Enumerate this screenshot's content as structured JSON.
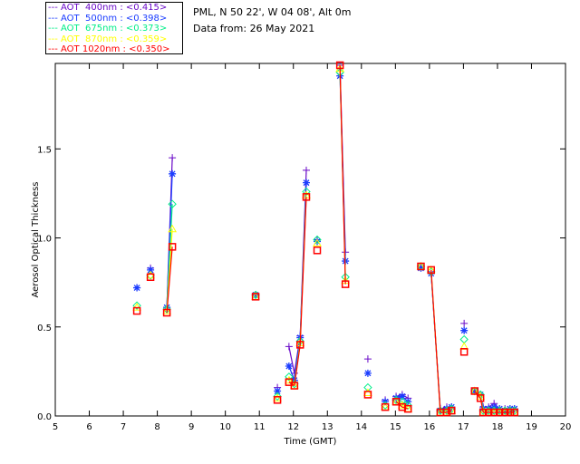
{
  "chart_data": {
    "type": "line",
    "title": "PML, N 50 22', W 04 08', Alt 0m",
    "subtitle": "Data from: 26 May 2021",
    "xlabel": "Time (GMT)",
    "ylabel": "Aerosol Optical Thickness",
    "xlim": [
      5,
      20
    ],
    "ylim": [
      0,
      1.98
    ],
    "xticks": [
      5,
      6,
      7,
      8,
      9,
      10,
      11,
      12,
      13,
      14,
      15,
      16,
      17,
      18,
      19,
      20
    ],
    "yticks": [
      "0.0",
      "0.5",
      "1.0",
      "1.5"
    ],
    "ytick_values": [
      0,
      0.5,
      1.0,
      1.5
    ],
    "legend_position": "top-left outside",
    "x": [
      7.4,
      7.8,
      8.28,
      8.44,
      10.89,
      11.53,
      11.87,
      12.03,
      12.2,
      12.38,
      12.7,
      13.37,
      13.53,
      14.19,
      14.7,
      15.02,
      15.2,
      15.37,
      15.75,
      16.05,
      16.32,
      16.51,
      16.65,
      17.02,
      17.33,
      17.5,
      17.58,
      17.74,
      17.9,
      18.06,
      18.22,
      18.37,
      18.5
    ],
    "series": [
      {
        "name": "AOT  400nm : <0.415>",
        "color": "#6a0ac8",
        "marker": "plus",
        "values": [
          0.72,
          0.83,
          0.61,
          1.45,
          0.68,
          0.16,
          0.39,
          0.24,
          0.45,
          1.38,
          0.99,
          1.97,
          0.92,
          0.32,
          0.09,
          0.11,
          0.12,
          0.1,
          0.84,
          0.8,
          0.04,
          0.05,
          0.05,
          0.52,
          0.14,
          0.12,
          0.05,
          0.05,
          0.07,
          0.04,
          0.04,
          0.04,
          0.04
        ]
      },
      {
        "name": "AOT  500nm : <0.398>",
        "color": "#1a3cff",
        "marker": "asterisk",
        "values": [
          0.72,
          0.82,
          0.61,
          1.36,
          0.68,
          0.14,
          0.28,
          0.2,
          0.44,
          1.31,
          0.98,
          1.91,
          0.87,
          0.24,
          0.08,
          0.1,
          0.11,
          0.08,
          0.83,
          0.8,
          0.03,
          0.04,
          0.05,
          0.48,
          0.14,
          0.12,
          0.04,
          0.04,
          0.05,
          0.04,
          0.03,
          0.04,
          0.04
        ]
      },
      {
        "name": "AOT  675nm : <0.373>",
        "color": "#00ee88",
        "marker": "diamond",
        "values": [
          0.62,
          0.79,
          0.6,
          1.19,
          0.68,
          0.11,
          0.22,
          0.18,
          0.42,
          1.26,
          0.99,
          1.93,
          0.78,
          0.16,
          0.06,
          0.09,
          0.08,
          0.06,
          0.84,
          0.81,
          0.03,
          0.03,
          0.04,
          0.43,
          0.14,
          0.12,
          0.03,
          0.03,
          0.03,
          0.03,
          0.03,
          0.03,
          0.03
        ]
      },
      {
        "name": "AOT  870nm : <0.359>",
        "color": "#ffff00",
        "marker": "triangle",
        "values": [
          0.61,
          0.79,
          0.59,
          1.05,
          0.67,
          0.1,
          0.2,
          0.17,
          0.41,
          1.24,
          0.97,
          1.95,
          0.76,
          0.13,
          0.05,
          0.08,
          0.06,
          0.04,
          0.84,
          0.82,
          0.02,
          0.02,
          0.03,
          0.39,
          0.14,
          0.11,
          0.02,
          0.02,
          0.02,
          0.02,
          0.02,
          0.02,
          0.02
        ]
      },
      {
        "name": "AOT 1020nm : <0.350>",
        "color": "#ff0000",
        "marker": "square",
        "values": [
          0.59,
          0.78,
          0.58,
          0.95,
          0.67,
          0.09,
          0.19,
          0.17,
          0.4,
          1.23,
          0.93,
          1.97,
          0.74,
          0.12,
          0.05,
          0.08,
          0.05,
          0.04,
          0.84,
          0.82,
          0.02,
          0.02,
          0.03,
          0.36,
          0.14,
          0.1,
          0.02,
          0.02,
          0.02,
          0.02,
          0.02,
          0.02,
          0.02
        ]
      }
    ]
  }
}
